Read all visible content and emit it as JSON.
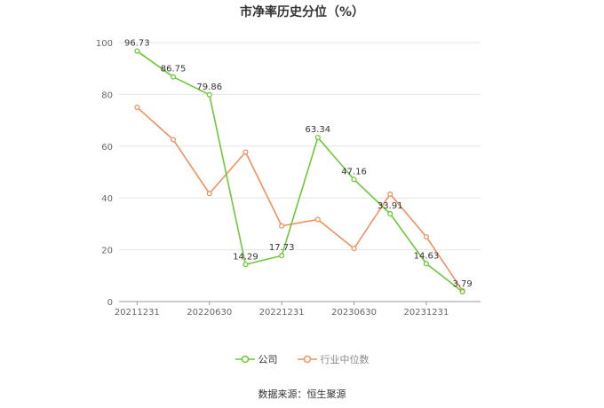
{
  "title": "市净率历史分位（%）",
  "source": "数据来源：恒生聚源",
  "chart_data": {
    "type": "line",
    "title": "市净率历史分位（%）",
    "xlabel": "",
    "ylabel": "",
    "ylim": [
      0,
      100
    ],
    "yticks": [
      0,
      20,
      40,
      60,
      80,
      100
    ],
    "xticks": [
      "20211231",
      "20220630",
      "20221231",
      "20230630",
      "20231231"
    ],
    "x": [
      "20211231",
      "20220331",
      "20220630",
      "20220930",
      "20221231",
      "20230331",
      "20230630",
      "20230930",
      "20231231",
      "20240331"
    ],
    "grid": true,
    "legend_position": "bottom",
    "series": [
      {
        "name": "公司",
        "color": "#6cc839",
        "values": [
          96.73,
          86.75,
          79.86,
          14.29,
          17.73,
          63.34,
          47.16,
          33.91,
          14.63,
          3.79
        ],
        "show_labels": true
      },
      {
        "name": "行业中位数",
        "color": "#f0915f",
        "values": [
          75.0,
          62.5,
          41.7,
          57.7,
          29.2,
          31.7,
          20.5,
          41.5,
          25.0,
          4.2
        ],
        "show_labels": false
      }
    ]
  }
}
